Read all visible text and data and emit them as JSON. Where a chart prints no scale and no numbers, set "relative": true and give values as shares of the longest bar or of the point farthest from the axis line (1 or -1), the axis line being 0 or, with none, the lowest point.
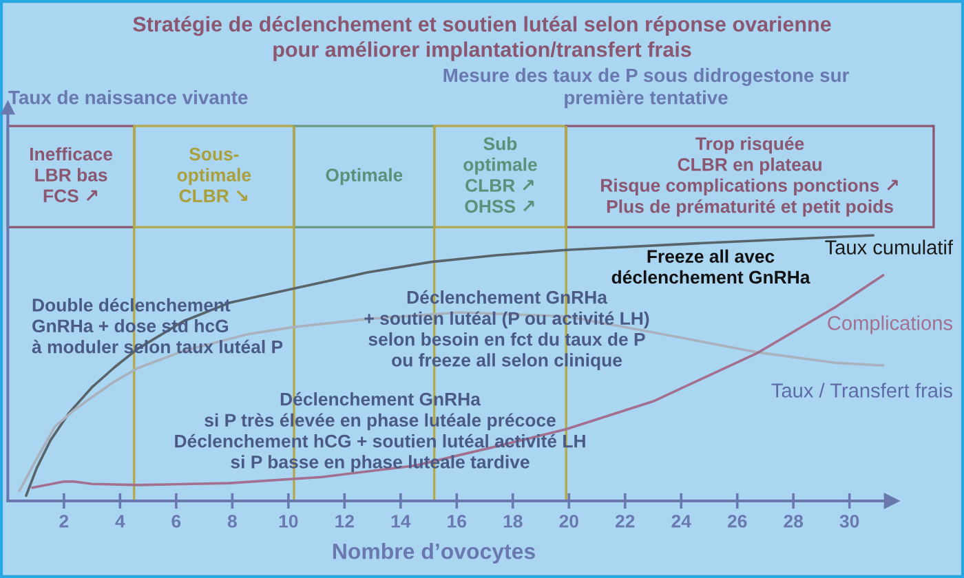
{
  "chart_data": {
    "type": "line",
    "title": "Stratégie de déclenchement et soutien lutéal selon réponse ovarienne\npour améliorer implantation/transfert frais",
    "xlabel": "Nombre d’ovocytes",
    "relative": true,
    "xlim": [
      0,
      31.5
    ],
    "xticks": [
      2,
      4,
      6,
      8,
      10,
      12,
      14,
      16,
      18,
      20,
      22,
      24,
      26,
      28,
      30
    ],
    "line_style": "solid",
    "series": [
      {
        "name": "Taux cumulatif",
        "color": "#59646a",
        "x": [
          0.65,
          1.03,
          1.52,
          2.17,
          2.99,
          3.81,
          4.63,
          6.26,
          7.9,
          10.2,
          12.8,
          15.1,
          17.4,
          19.9,
          24.6,
          30.85
        ],
        "values": [
          0.02,
          0.124,
          0.228,
          0.33,
          0.427,
          0.504,
          0.573,
          0.677,
          0.746,
          0.8,
          0.86,
          0.9,
          0.925,
          0.945,
          0.97,
          1.0
        ]
      },
      {
        "name": "Taux / Transfert frais",
        "color": "#a9b1bd",
        "x": [
          0.41,
          1.03,
          1.68,
          2.34,
          2.99,
          3.81,
          4.63,
          6.26,
          8.56,
          10.2,
          12.8,
          16.1,
          19.9,
          23.0,
          26.7,
          29.5,
          31.2
        ],
        "values": [
          0.038,
          0.159,
          0.28,
          0.34,
          0.39,
          0.45,
          0.5,
          0.565,
          0.628,
          0.655,
          0.685,
          0.71,
          0.695,
          0.635,
          0.56,
          0.52,
          0.51
        ]
      },
      {
        "name": "Complications",
        "color": "#a3708f",
        "x": [
          0.87,
          2.01,
          2.34,
          2.99,
          4.63,
          7.9,
          11.2,
          14.5,
          17.4,
          19.9,
          23.0,
          26.7,
          29.5,
          31.2
        ],
        "values": [
          0.05,
          0.073,
          0.073,
          0.064,
          0.06,
          0.067,
          0.09,
          0.133,
          0.205,
          0.27,
          0.375,
          0.556,
          0.73,
          0.85
        ]
      }
    ],
    "ref_lines": [
      {
        "axis": "x",
        "value": 4.5,
        "color": "#b3a84a"
      },
      {
        "axis": "x",
        "value": 10.2,
        "color": "#b3a84a"
      },
      {
        "axis": "x",
        "value": 15.2,
        "color": "#b3a84a"
      },
      {
        "axis": "x",
        "value": 19.9,
        "color": "#b3a84a"
      }
    ],
    "annotations": [
      "Taux de naissance vivante",
      "Mesure des taux de P sous didrogestone sur\npremière tentative",
      "Inefficace\nLBR bas\nFCS ↗",
      "Sous-\noptimale\nCLBR ↘",
      "Optimale",
      "Sub\noptimale\nCLBR ↗\nOHSS ↗",
      "Trop risquée\nCLBR en plateau\nRisque complications ponctions ↗\nPlus de prématurité et petit poids",
      "Double déclenchement\nGnRHa + dose std hcG\nà moduler selon taux lutéal P",
      "Déclenchement GnRHa\n+ soutien lutéal (P ou activité LH)\nselon besoin en fct du taux de P\nou freeze all selon clinique",
      "Déclenchement GnRHa\nsi P très élevée en phase lutéale précoce\nDéclenchement hCG + soutien lutéal activité LH\nsi P basse en phase luteale tardive",
      "Freeze all avec\ndéclenchement GnRHa"
    ]
  }
}
